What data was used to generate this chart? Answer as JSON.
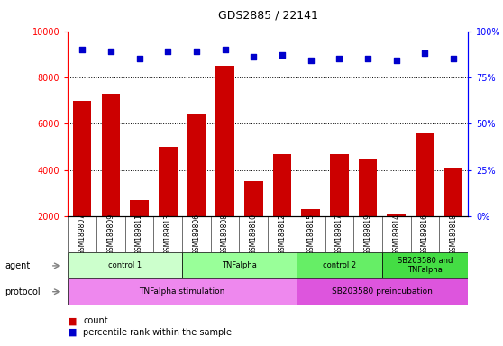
{
  "title": "GDS2885 / 22141",
  "samples": [
    "GSM189807",
    "GSM189809",
    "GSM189811",
    "GSM189813",
    "GSM189806",
    "GSM189808",
    "GSM189810",
    "GSM189812",
    "GSM189815",
    "GSM189817",
    "GSM189819",
    "GSM189814",
    "GSM189816",
    "GSM189818"
  ],
  "counts": [
    7000,
    7300,
    2700,
    5000,
    6400,
    8500,
    3500,
    4700,
    2300,
    4700,
    4500,
    2100,
    5600,
    4100
  ],
  "percentiles": [
    90,
    89,
    85,
    89,
    89,
    90,
    86,
    87,
    84,
    85,
    85,
    84,
    88,
    85
  ],
  "bar_color": "#CC0000",
  "dot_color": "#0000CC",
  "ylim_left": [
    2000,
    10000
  ],
  "ylim_right": [
    0,
    100
  ],
  "yticks_left": [
    2000,
    4000,
    6000,
    8000,
    10000
  ],
  "yticks_right": [
    0,
    25,
    50,
    75,
    100
  ],
  "ytick_labels_right": [
    "0%",
    "25%",
    "50%",
    "75%",
    "100%"
  ],
  "agent_groups": [
    {
      "label": "control 1",
      "start": 0,
      "end": 4,
      "color": "#ccffcc"
    },
    {
      "label": "TNFalpha",
      "start": 4,
      "end": 8,
      "color": "#99ff99"
    },
    {
      "label": "control 2",
      "start": 8,
      "end": 11,
      "color": "#66ee66"
    },
    {
      "label": "SB203580 and\nTNFalpha",
      "start": 11,
      "end": 14,
      "color": "#44dd44"
    }
  ],
  "protocol_groups": [
    {
      "label": "TNFalpha stimulation",
      "start": 0,
      "end": 8,
      "color": "#ee88ee"
    },
    {
      "label": "SB203580 preincubation",
      "start": 8,
      "end": 14,
      "color": "#dd55dd"
    }
  ],
  "grid_color": "#000000",
  "background_color": "#ffffff",
  "sample_bg_color": "#d8d8d8",
  "agent_label": "agent",
  "protocol_label": "protocol",
  "legend_count": "count",
  "legend_pct": "percentile rank within the sample"
}
